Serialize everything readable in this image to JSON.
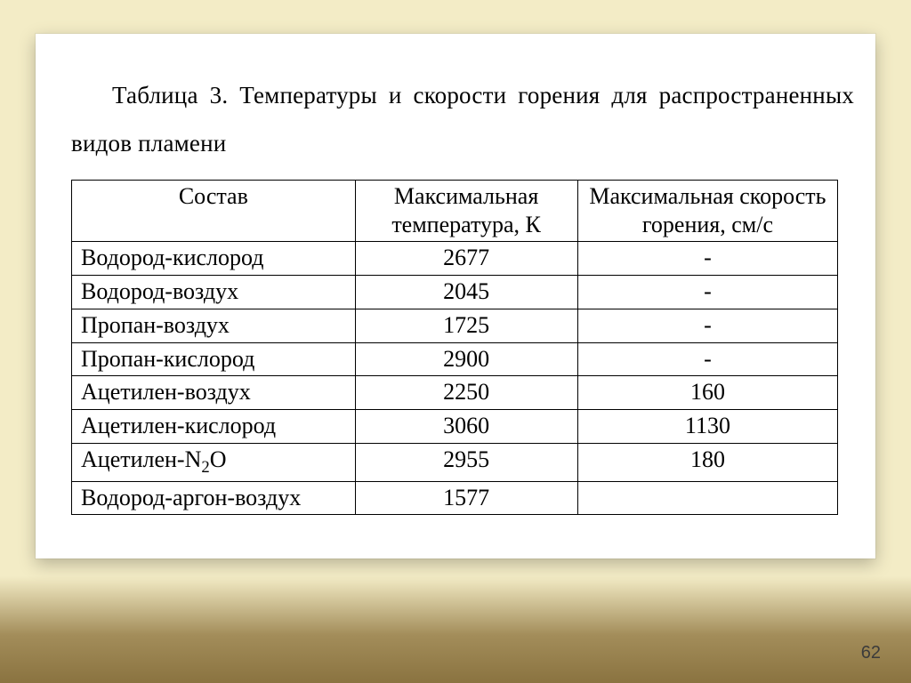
{
  "slide": {
    "page_number": "62",
    "background_color": "#f3ecc6",
    "gradient_top": "#f3ecc6",
    "gradient_bottom": "#8a7340"
  },
  "caption": {
    "line1": "Таблица 3. Температуры и скорости горения для распространенных",
    "line2": "видов пламени"
  },
  "table": {
    "columns": [
      "Состав",
      "Максимальная температура, К",
      "Максимальная скорость горения, см/с"
    ],
    "header_cells": {
      "c1": "Состав",
      "c2a": "Максимальная",
      "c2b": "температура, К",
      "c3a": "Максимальная скорость",
      "c3b": "горения, см/с"
    },
    "rows": [
      {
        "compo": "Водород-кислород",
        "temp": "2677",
        "speed": "-"
      },
      {
        "compo": "Водород-воздух",
        "temp": "2045",
        "speed": "-"
      },
      {
        "compo": "Пропан-воздух",
        "temp": "1725",
        "speed": "-"
      },
      {
        "compo": "Пропан-кислород",
        "temp": "2900",
        "speed": "-"
      },
      {
        "compo": "Ацетилен-воздух",
        "temp": "2250",
        "speed": "160"
      },
      {
        "compo": "Ацетилен-кислород",
        "temp": "3060",
        "speed": "1130"
      },
      {
        "compo_html": "Ацетилен-N<sub>2</sub>O",
        "compo": "Ацетилен-N2O",
        "temp": "2955",
        "speed": "180"
      },
      {
        "compo": "Водород-аргон-воздух",
        "temp": "1577",
        "speed": ""
      }
    ],
    "border_color": "#000000",
    "font_size_pt": 20
  }
}
